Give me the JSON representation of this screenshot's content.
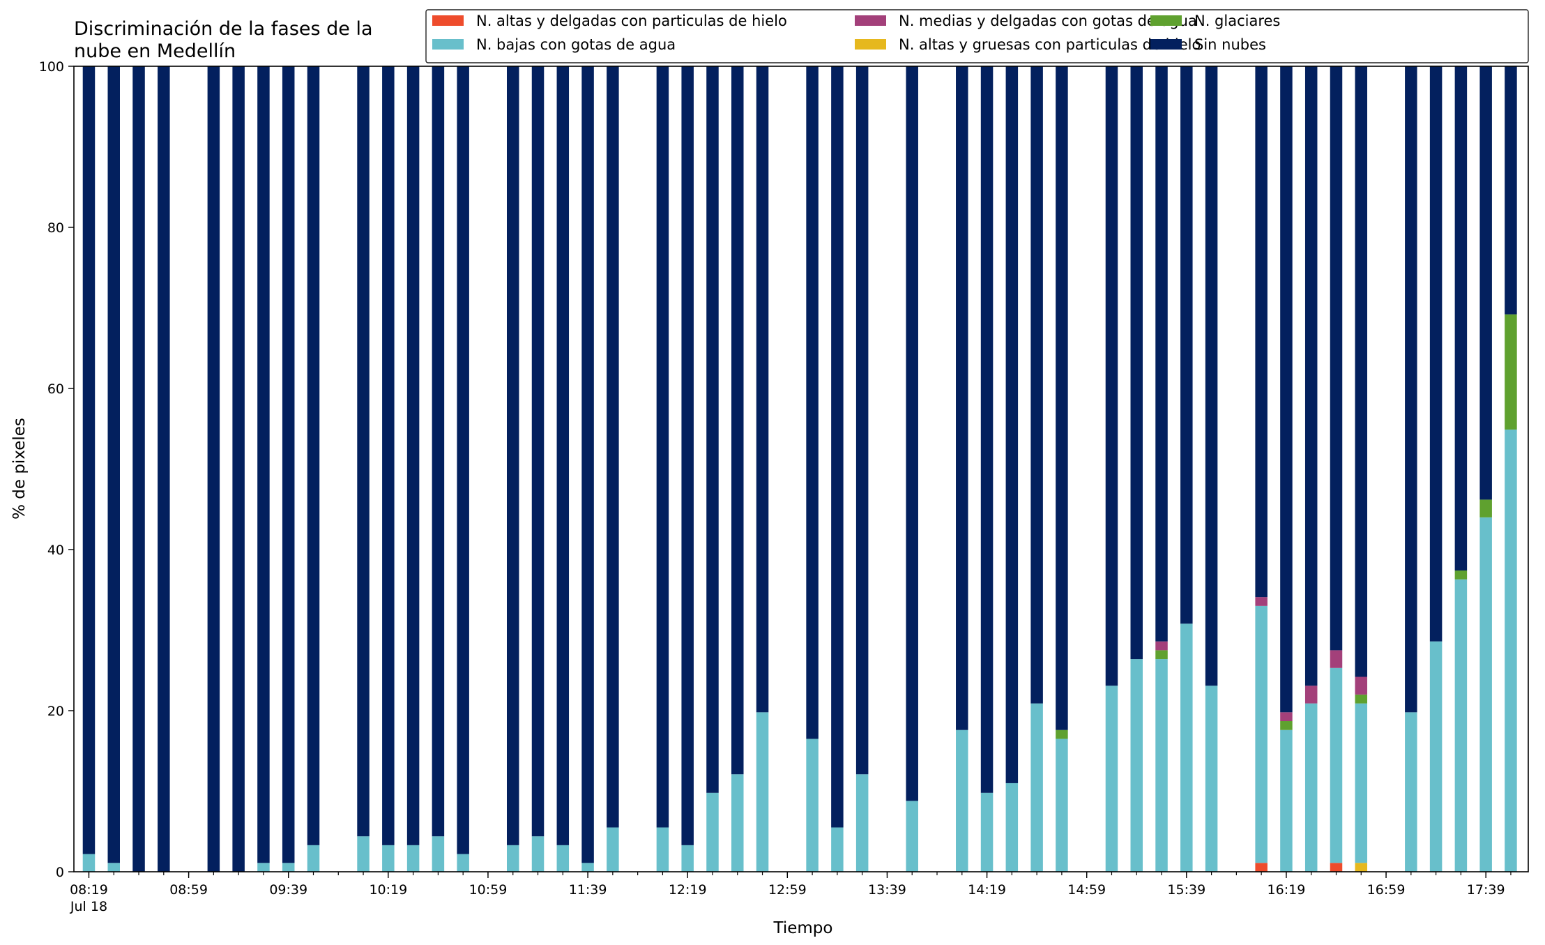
{
  "chart_data": {
    "type": "bar",
    "stacked": true,
    "title": "Discriminación de la fases de la\nnube en Medellín",
    "xlabel": "Tiempo",
    "ylabel": "% de pixeles",
    "ylim": [
      0,
      100
    ],
    "yticks": [
      0,
      20,
      40,
      60,
      80,
      100
    ],
    "xlim_minutes": [
      "08:13",
      "17:56"
    ],
    "xtick_labels": [
      "08:19",
      "08:59",
      "09:39",
      "10:19",
      "10:59",
      "11:39",
      "12:19",
      "12:59",
      "13:39",
      "14:19",
      "14:59",
      "15:39",
      "16:19",
      "16:59",
      "17:39"
    ],
    "xtick_sublabel": "Jul 18",
    "legend_position": "top-right",
    "series": [
      {
        "name": "N. altas y delgadas con particulas de hielo",
        "color": "#ee4c2c"
      },
      {
        "name": "N. altas y gruesas con particulas de hielo",
        "color": "#e6b81e"
      },
      {
        "name": "N. bajas con gotas de agua",
        "color": "#68bfcb"
      },
      {
        "name": "N. glaciares",
        "color": "#5fa12f"
      },
      {
        "name": "N. medias y delgadas con gotas de agua",
        "color": "#a3407a"
      },
      {
        "name": "Sin nubes",
        "color": "#03205e"
      }
    ],
    "legend_order": [
      0,
      2,
      4,
      1,
      3,
      5
    ],
    "bars": [
      {
        "time": "08:19",
        "values": [
          0,
          0,
          2.2,
          0,
          0,
          97.8
        ]
      },
      {
        "time": "08:29",
        "values": [
          0,
          0,
          1.1,
          0,
          0,
          98.9
        ]
      },
      {
        "time": "08:39",
        "values": [
          0,
          0,
          0,
          0,
          0,
          100
        ]
      },
      {
        "time": "08:49",
        "values": [
          0,
          0,
          0,
          0,
          0,
          100
        ]
      },
      {
        "time": "09:09",
        "values": [
          0,
          0,
          0,
          0,
          0,
          100
        ]
      },
      {
        "time": "09:19",
        "values": [
          0,
          0,
          0,
          0,
          0,
          100
        ]
      },
      {
        "time": "09:29",
        "values": [
          0,
          0,
          1.1,
          0,
          0,
          98.9
        ]
      },
      {
        "time": "09:39",
        "values": [
          0,
          0,
          1.1,
          0,
          0,
          98.9
        ]
      },
      {
        "time": "09:49",
        "values": [
          0,
          0,
          3.3,
          0,
          0,
          96.7
        ]
      },
      {
        "time": "10:09",
        "values": [
          0,
          0,
          4.4,
          0,
          0,
          95.6
        ]
      },
      {
        "time": "10:19",
        "values": [
          0,
          0,
          3.3,
          0,
          0,
          96.7
        ]
      },
      {
        "time": "10:29",
        "values": [
          0,
          0,
          3.3,
          0,
          0,
          96.7
        ]
      },
      {
        "time": "10:39",
        "values": [
          0,
          0,
          4.4,
          0,
          0,
          95.6
        ]
      },
      {
        "time": "10:49",
        "values": [
          0,
          0,
          2.2,
          0,
          0,
          97.8
        ]
      },
      {
        "time": "11:09",
        "values": [
          0,
          0,
          3.3,
          0,
          0,
          96.7
        ]
      },
      {
        "time": "11:19",
        "values": [
          0,
          0,
          4.4,
          0,
          0,
          95.6
        ]
      },
      {
        "time": "11:29",
        "values": [
          0,
          0,
          3.3,
          0,
          0,
          96.7
        ]
      },
      {
        "time": "11:39",
        "values": [
          0,
          0,
          1.1,
          0,
          0,
          98.9
        ]
      },
      {
        "time": "11:49",
        "values": [
          0,
          0,
          5.5,
          0,
          0,
          94.5
        ]
      },
      {
        "time": "12:09",
        "values": [
          0,
          0,
          5.5,
          0,
          0,
          94.5
        ]
      },
      {
        "time": "12:19",
        "values": [
          0,
          0,
          3.3,
          0,
          0,
          96.7
        ]
      },
      {
        "time": "12:29",
        "values": [
          0,
          0,
          9.8,
          0,
          0,
          90.2
        ]
      },
      {
        "time": "12:39",
        "values": [
          0,
          0,
          12.1,
          0,
          0,
          87.9
        ]
      },
      {
        "time": "12:49",
        "values": [
          0,
          0,
          19.8,
          0,
          0,
          80.2
        ]
      },
      {
        "time": "13:09",
        "values": [
          0,
          0,
          16.5,
          0,
          0,
          83.5
        ]
      },
      {
        "time": "13:19",
        "values": [
          0,
          0,
          5.5,
          0,
          0,
          94.5
        ]
      },
      {
        "time": "13:29",
        "values": [
          0,
          0,
          12.1,
          0,
          0,
          87.9
        ]
      },
      {
        "time": "13:49",
        "values": [
          0,
          0,
          8.8,
          0,
          0,
          91.2
        ]
      },
      {
        "time": "14:09",
        "values": [
          0,
          0,
          17.6,
          0,
          0,
          82.4
        ]
      },
      {
        "time": "14:19",
        "values": [
          0,
          0,
          9.8,
          0,
          0,
          90.2
        ]
      },
      {
        "time": "14:29",
        "values": [
          0,
          0,
          11.0,
          0,
          0,
          89.0
        ]
      },
      {
        "time": "14:39",
        "values": [
          0,
          0,
          20.9,
          0,
          0,
          79.1
        ]
      },
      {
        "time": "14:49",
        "values": [
          0,
          0,
          16.5,
          1.1,
          0,
          82.4
        ]
      },
      {
        "time": "15:09",
        "values": [
          0,
          0,
          23.1,
          0,
          0,
          76.9
        ]
      },
      {
        "time": "15:19",
        "values": [
          0,
          0,
          26.4,
          0,
          0,
          73.6
        ]
      },
      {
        "time": "15:29",
        "values": [
          0,
          0,
          26.4,
          1.1,
          1.1,
          71.4
        ]
      },
      {
        "time": "15:39",
        "values": [
          0,
          0,
          30.8,
          0,
          0,
          69.2
        ]
      },
      {
        "time": "15:49",
        "values": [
          0,
          0,
          23.1,
          0,
          0,
          76.9
        ]
      },
      {
        "time": "16:09",
        "values": [
          1.1,
          0,
          31.9,
          0,
          1.1,
          65.9
        ]
      },
      {
        "time": "16:19",
        "values": [
          0,
          0,
          17.6,
          1.1,
          1.1,
          80.2
        ]
      },
      {
        "time": "16:29",
        "values": [
          0,
          0,
          20.9,
          0,
          2.2,
          76.9
        ]
      },
      {
        "time": "16:39",
        "values": [
          1.1,
          0,
          24.2,
          0,
          2.2,
          72.5
        ]
      },
      {
        "time": "16:49",
        "values": [
          0,
          1.1,
          19.8,
          1.1,
          2.2,
          75.8
        ]
      },
      {
        "time": "17:09",
        "values": [
          0,
          0,
          19.8,
          0,
          0,
          80.2
        ]
      },
      {
        "time": "17:19",
        "values": [
          0,
          0,
          28.6,
          0,
          0,
          71.4
        ]
      },
      {
        "time": "17:29",
        "values": [
          0,
          0,
          36.3,
          1.1,
          0,
          62.6
        ]
      },
      {
        "time": "17:39",
        "values": [
          0,
          0,
          44.0,
          2.2,
          0,
          53.8
        ]
      },
      {
        "time": "17:49",
        "values": [
          0,
          0,
          54.9,
          14.3,
          0,
          30.8
        ]
      }
    ]
  }
}
